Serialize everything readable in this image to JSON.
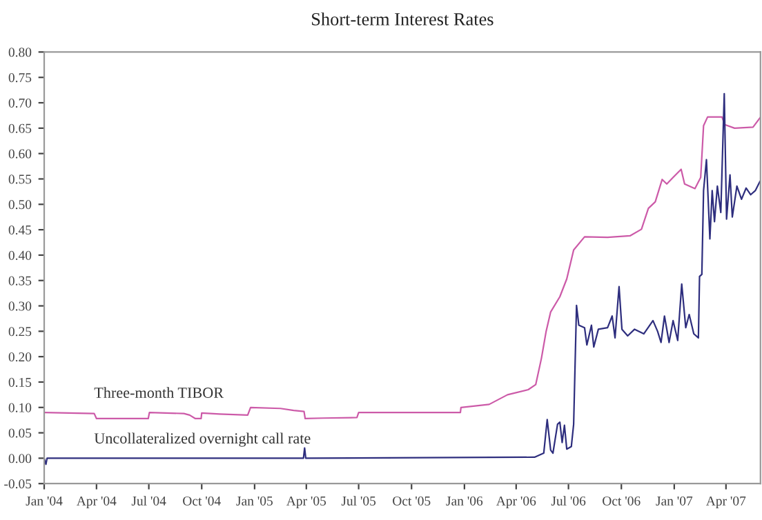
{
  "chart_data": {
    "type": "line",
    "title": "Short-term Interest Rates",
    "xlim": [
      "2004-01-01",
      "2007-05-31"
    ],
    "xticks": [
      {
        "value": "2004-01-01",
        "label": "Jan '04"
      },
      {
        "value": "2004-04-01",
        "label": "Apr '04"
      },
      {
        "value": "2004-07-01",
        "label": "Jul '04"
      },
      {
        "value": "2004-10-01",
        "label": "Oct '04"
      },
      {
        "value": "2005-01-01",
        "label": "Jan '05"
      },
      {
        "value": "2005-04-01",
        "label": "Apr '05"
      },
      {
        "value": "2005-07-01",
        "label": "Jul '05"
      },
      {
        "value": "2005-10-01",
        "label": "Oct '05"
      },
      {
        "value": "2006-01-01",
        "label": "Jan '06"
      },
      {
        "value": "2006-04-01",
        "label": "Apr '06"
      },
      {
        "value": "2006-07-01",
        "label": "Jul '06"
      },
      {
        "value": "2006-10-01",
        "label": "Oct '06"
      },
      {
        "value": "2007-01-01",
        "label": "Jan '07"
      },
      {
        "value": "2007-04-01",
        "label": "Apr '07"
      }
    ],
    "ylim": [
      -0.05,
      0.8
    ],
    "yticks": [
      {
        "value": -0.05,
        "label": "-0.05"
      },
      {
        "value": 0,
        "label": "0.00"
      },
      {
        "value": 0.05,
        "label": "0.05"
      },
      {
        "value": 0.1,
        "label": "0.10"
      },
      {
        "value": 0.15,
        "label": "0.15"
      },
      {
        "value": 0.2,
        "label": "0.20"
      },
      {
        "value": 0.25,
        "label": "0.25"
      },
      {
        "value": 0.3,
        "label": "0.30"
      },
      {
        "value": 0.35,
        "label": "0.35"
      },
      {
        "value": 0.4,
        "label": "0.40"
      },
      {
        "value": 0.45,
        "label": "0.45"
      },
      {
        "value": 0.5,
        "label": "0.50"
      },
      {
        "value": 0.55,
        "label": "0.55"
      },
      {
        "value": 0.6,
        "label": "0.60"
      },
      {
        "value": 0.65,
        "label": "0.65"
      },
      {
        "value": 0.7,
        "label": "0.70"
      },
      {
        "value": 0.75,
        "label": "0.75"
      },
      {
        "value": 0.8,
        "label": "0.80"
      }
    ],
    "grid": false,
    "legend": false,
    "marker": "none",
    "line_style": "solid",
    "series": [
      {
        "name": "Three-month TIBOR",
        "color": "#cc5aa8",
        "x": [
          "2004-01-01",
          "2004-03-28",
          "2004-04-01",
          "2004-06-30",
          "2004-07-02",
          "2004-08-31",
          "2004-09-10",
          "2004-09-20",
          "2004-09-30",
          "2004-10-01",
          "2004-11-01",
          "2004-12-20",
          "2004-12-25",
          "2005-02-15",
          "2005-03-10",
          "2005-03-28",
          "2005-03-30",
          "2005-04-30",
          "2005-06-28",
          "2005-07-01",
          "2005-12-25",
          "2005-12-26",
          "2006-02-13",
          "2006-03-17",
          "2006-04-22",
          "2006-05-05",
          "2006-05-15",
          "2006-05-23",
          "2006-05-31",
          "2006-06-16",
          "2006-06-28",
          "2006-07-10",
          "2006-07-29",
          "2006-09-07",
          "2006-10-16",
          "2006-11-05",
          "2006-11-17",
          "2006-11-29",
          "2006-12-11",
          "2006-12-19",
          "2006-12-30",
          "2007-01-13",
          "2007-01-19",
          "2007-02-06",
          "2007-02-16",
          "2007-02-21",
          "2007-02-28",
          "2007-03-25",
          "2007-03-30",
          "2007-04-16",
          "2007-05-18",
          "2007-05-30"
        ],
        "values": [
          0.09,
          0.088,
          0.078,
          0.078,
          0.09,
          0.088,
          0.085,
          0.078,
          0.078,
          0.089,
          0.087,
          0.085,
          0.1,
          0.098,
          0.094,
          0.092,
          0.078,
          0.079,
          0.08,
          0.09,
          0.09,
          0.1,
          0.106,
          0.125,
          0.135,
          0.145,
          0.197,
          0.249,
          0.288,
          0.318,
          0.353,
          0.41,
          0.436,
          0.435,
          0.438,
          0.451,
          0.492,
          0.505,
          0.549,
          0.54,
          0.553,
          0.569,
          0.54,
          0.531,
          0.553,
          0.655,
          0.672,
          0.672,
          0.657,
          0.65,
          0.652,
          0.67
        ]
      },
      {
        "name": "Uncollateralized overnight call rate",
        "color": "#2e2e7e",
        "x": [
          "2004-01-01",
          "2004-01-04",
          "2004-01-06",
          "2004-03-29",
          "2005-03-27",
          "2005-03-29",
          "2005-03-31",
          "2006-05-03",
          "2006-05-19",
          "2006-05-25",
          "2006-05-31",
          "2006-06-04",
          "2006-06-12",
          "2006-06-16",
          "2006-06-20",
          "2006-06-24",
          "2006-06-28",
          "2006-07-06",
          "2006-07-10",
          "2006-07-15",
          "2006-07-19",
          "2006-07-29",
          "2006-08-02",
          "2006-08-10",
          "2006-08-14",
          "2006-08-22",
          "2006-09-07",
          "2006-09-15",
          "2006-09-20",
          "2006-09-27",
          "2006-10-02",
          "2006-10-12",
          "2006-10-24",
          "2006-11-09",
          "2006-11-25",
          "2006-12-03",
          "2006-12-09",
          "2006-12-15",
          "2006-12-23",
          "2006-12-30",
          "2007-01-07",
          "2007-01-14",
          "2007-01-21",
          "2007-01-27",
          "2007-02-04",
          "2007-02-12",
          "2007-02-14",
          "2007-02-18",
          "2007-02-21",
          "2007-02-26",
          "2007-03-04",
          "2007-03-08",
          "2007-03-12",
          "2007-03-17",
          "2007-03-23",
          "2007-03-29",
          "2007-04-02",
          "2007-04-08",
          "2007-04-12",
          "2007-04-20",
          "2007-04-28",
          "2007-05-06",
          "2007-05-14",
          "2007-05-22",
          "2007-05-30"
        ],
        "values": [
          0.0,
          -0.012,
          0.0,
          0.0,
          0.0,
          0.02,
          0.0,
          0.002,
          0.01,
          0.076,
          0.016,
          0.01,
          0.067,
          0.071,
          0.031,
          0.065,
          0.018,
          0.023,
          0.067,
          0.301,
          0.262,
          0.257,
          0.223,
          0.262,
          0.219,
          0.254,
          0.257,
          0.28,
          0.237,
          0.338,
          0.254,
          0.241,
          0.254,
          0.245,
          0.271,
          0.25,
          0.228,
          0.28,
          0.228,
          0.271,
          0.232,
          0.343,
          0.257,
          0.283,
          0.245,
          0.237,
          0.358,
          0.362,
          0.527,
          0.588,
          0.432,
          0.527,
          0.466,
          0.536,
          0.484,
          0.718,
          0.471,
          0.558,
          0.475,
          0.536,
          0.51,
          0.532,
          0.519,
          0.527,
          0.545
        ]
      }
    ]
  }
}
